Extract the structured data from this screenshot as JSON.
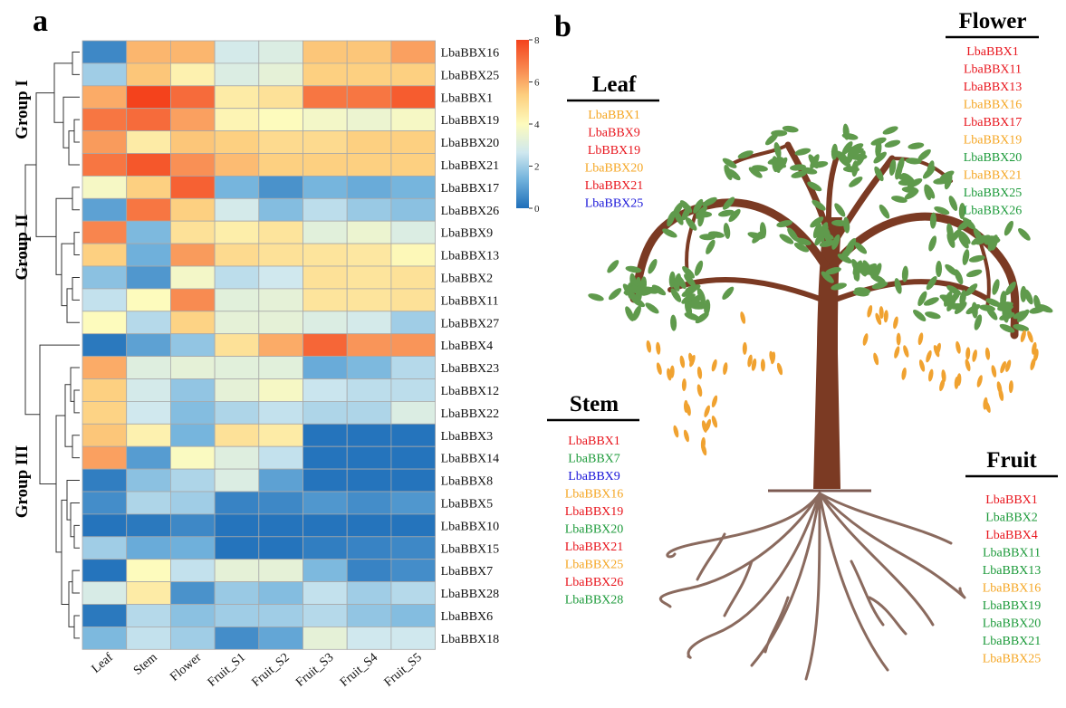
{
  "panels": {
    "a": "a",
    "b": "b"
  },
  "chart_data": {
    "type": "heatmap",
    "columns": [
      "Leaf",
      "Stem",
      "Flower",
      "Fruit_S1",
      "Fruit_S2",
      "Fruit_S3",
      "Fruit_S4",
      "Fruit_S5"
    ],
    "rows": [
      "LbaBBX16",
      "LbaBBX25",
      "LbaBBX1",
      "LbaBBX19",
      "LbaBBX20",
      "LbaBBX21",
      "LbaBBX17",
      "LbaBBX26",
      "LbaBBX9",
      "LbaBBX13",
      "LbaBBX2",
      "LbaBBX11",
      "LbaBBX27",
      "LbaBBX4",
      "LbaBBX23",
      "LbaBBX12",
      "LbaBBX22",
      "LbaBBX3",
      "LbaBBX14",
      "LbaBBX8",
      "LbaBBX5",
      "LbaBBX10",
      "LbaBBX15",
      "LbaBBX7",
      "LbaBBX28",
      "LbaBBX6",
      "LbaBBX18"
    ],
    "values": [
      [
        0.5,
        5.8,
        5.8,
        2.8,
        3.0,
        5.5,
        5.5,
        6.2
      ],
      [
        2.0,
        5.5,
        4.3,
        3.0,
        3.3,
        5.3,
        5.3,
        5.3
      ],
      [
        6.0,
        8.0,
        7.2,
        4.5,
        4.8,
        7.0,
        7.0,
        7.5
      ],
      [
        7.0,
        7.2,
        6.2,
        4.2,
        4.0,
        3.7,
        3.5,
        3.8
      ],
      [
        6.3,
        4.5,
        5.5,
        5.3,
        5.0,
        5.0,
        5.3,
        5.3
      ],
      [
        7.0,
        7.6,
        6.5,
        5.7,
        5.3,
        5.3,
        5.3,
        5.3
      ],
      [
        3.8,
        5.3,
        7.4,
        1.4,
        0.7,
        1.4,
        1.2,
        1.4
      ],
      [
        1.0,
        7.0,
        5.3,
        2.8,
        1.6,
        2.4,
        1.9,
        1.7
      ],
      [
        6.7,
        1.5,
        4.8,
        4.4,
        4.7,
        3.2,
        3.5,
        3.0
      ],
      [
        5.3,
        1.3,
        6.3,
        5.0,
        4.8,
        4.7,
        4.6,
        4.1
      ],
      [
        1.7,
        0.8,
        3.7,
        2.4,
        2.7,
        4.8,
        4.7,
        4.8
      ],
      [
        2.5,
        4.0,
        6.6,
        3.2,
        3.3,
        4.7,
        4.7,
        4.8
      ],
      [
        4.0,
        2.3,
        5.2,
        3.3,
        3.3,
        3.0,
        2.8,
        2.0
      ],
      [
        0.2,
        1.0,
        1.8,
        4.8,
        6.0,
        7.3,
        6.4,
        6.4
      ],
      [
        6.0,
        3.1,
        3.3,
        3.2,
        3.2,
        1.2,
        1.5,
        2.3
      ],
      [
        5.3,
        2.8,
        1.8,
        3.3,
        3.8,
        2.6,
        2.4,
        2.4
      ],
      [
        5.2,
        2.7,
        1.6,
        2.2,
        2.5,
        2.2,
        2.2,
        3.0
      ],
      [
        5.5,
        4.3,
        1.4,
        4.8,
        4.5,
        0.1,
        0.1,
        0.1
      ],
      [
        6.2,
        0.9,
        3.9,
        3.1,
        2.5,
        0.1,
        0.1,
        0.1
      ],
      [
        0.3,
        1.7,
        2.2,
        3.0,
        1.0,
        0.1,
        0.1,
        0.1
      ],
      [
        0.6,
        2.2,
        2.0,
        0.4,
        0.5,
        0.8,
        0.6,
        0.8
      ],
      [
        0.1,
        0.2,
        0.5,
        0.1,
        0.1,
        0.1,
        0.1,
        0.1
      ],
      [
        2.0,
        1.2,
        1.3,
        0.1,
        0.1,
        0.3,
        0.4,
        0.5
      ],
      [
        0.1,
        4.0,
        2.5,
        3.3,
        3.3,
        1.5,
        0.4,
        0.6
      ],
      [
        2.9,
        4.5,
        0.7,
        1.9,
        1.6,
        2.5,
        2.0,
        2.3
      ],
      [
        0.2,
        2.3,
        1.7,
        2.0,
        2.0,
        2.3,
        1.8,
        1.6
      ],
      [
        1.5,
        2.5,
        2.0,
        0.6,
        1.1,
        3.3,
        2.7,
        2.7
      ]
    ],
    "colorbar": {
      "min": 0,
      "max": 8,
      "ticks": [
        "0",
        "2",
        "4",
        "6",
        "8"
      ],
      "colors": [
        "#1f6fb9",
        "#71b2dc",
        "#cfe8ef",
        "#fdfbbd",
        "#fdcf7f",
        "#f8874f",
        "#f4421c"
      ]
    },
    "groups": [
      "Group I",
      "Group II",
      "Group III"
    ]
  },
  "tissues": [
    {
      "title": "Leaf",
      "genes": [
        {
          "name": "LbaBBX1",
          "color": "#f5a623"
        },
        {
          "name": "LbaBBX9",
          "color": "#e8151d"
        },
        {
          "name": "LbBBX19",
          "color": "#e8151d"
        },
        {
          "name": "LbaBBX20",
          "color": "#f5a623"
        },
        {
          "name": "LbaBBX21",
          "color": "#e8151d"
        },
        {
          "name": "LbaBBX25",
          "color": "#1713d8"
        }
      ]
    },
    {
      "title": "Flower",
      "genes": [
        {
          "name": "LbaBBX1",
          "color": "#e8151d"
        },
        {
          "name": "LbaBBX11",
          "color": "#e8151d"
        },
        {
          "name": "LbaBBX13",
          "color": "#e8151d"
        },
        {
          "name": "LbaBBX16",
          "color": "#f5a623"
        },
        {
          "name": "LbaBBX17",
          "color": "#e8151d"
        },
        {
          "name": "LbaBBX19",
          "color": "#f5a623"
        },
        {
          "name": "LbaBBX20",
          "color": "#1c9a3a"
        },
        {
          "name": "LbaBBX21",
          "color": "#f5a623"
        },
        {
          "name": "LbaBBX25",
          "color": "#1c9a3a"
        },
        {
          "name": "LbaBBX26",
          "color": "#1c9a3a"
        }
      ]
    },
    {
      "title": "Stem",
      "genes": [
        {
          "name": "LbaBBX1",
          "color": "#e8151d"
        },
        {
          "name": "LbaBBX7",
          "color": "#1c9a3a"
        },
        {
          "name": "LbaBBX9",
          "color": "#1713d8"
        },
        {
          "name": "LbaBBX16",
          "color": "#f5a623"
        },
        {
          "name": "LbaBBX19",
          "color": "#e8151d"
        },
        {
          "name": "LbaBBX20",
          "color": "#1c9a3a"
        },
        {
          "name": "LbaBBX21",
          "color": "#e8151d"
        },
        {
          "name": "LbaBBX25",
          "color": "#f5a623"
        },
        {
          "name": "LbaBBX26",
          "color": "#e8151d"
        },
        {
          "name": "LbaBBX28",
          "color": "#1c9a3a"
        }
      ]
    },
    {
      "title": "Fruit",
      "genes": [
        {
          "name": "LbaBBX1",
          "color": "#e8151d"
        },
        {
          "name": "LbaBBX2",
          "color": "#1c9a3a"
        },
        {
          "name": "LbaBBX4",
          "color": "#e8151d"
        },
        {
          "name": "LbaBBX11",
          "color": "#1c9a3a"
        },
        {
          "name": "LbaBBX13",
          "color": "#1c9a3a"
        },
        {
          "name": "LbaBBX16",
          "color": "#f5a623"
        },
        {
          "name": "LbaBBX19",
          "color": "#1c9a3a"
        },
        {
          "name": "LbaBBX20",
          "color": "#1c9a3a"
        },
        {
          "name": "LbaBBX21",
          "color": "#1c9a3a"
        },
        {
          "name": "LbaBBX25",
          "color": "#f5a623"
        }
      ]
    }
  ]
}
